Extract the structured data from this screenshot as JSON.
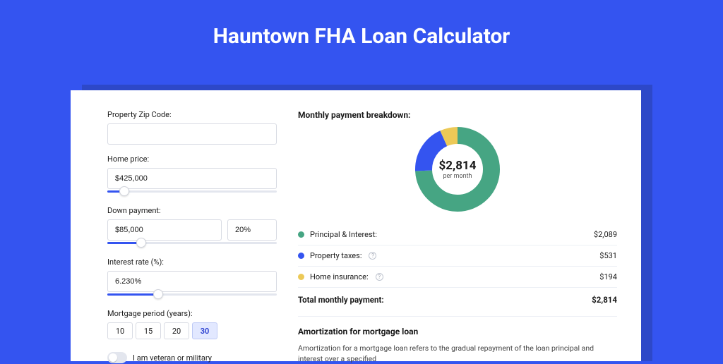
{
  "page": {
    "title": "Hauntown FHA Loan Calculator",
    "background_color": "#3454f0",
    "shadow_color": "#2d48c8",
    "card_color": "#ffffff"
  },
  "form": {
    "zip": {
      "label": "Property Zip Code:",
      "value": ""
    },
    "home_price": {
      "label": "Home price:",
      "value": "$425,000",
      "slider_pct": 10
    },
    "down_payment": {
      "label": "Down payment:",
      "amount": "$85,000",
      "percent": "20%",
      "slider_pct": 20
    },
    "interest_rate": {
      "label": "Interest rate (%):",
      "value": "6.230%",
      "slider_pct": 30
    },
    "mortgage_period": {
      "label": "Mortgage period (years):",
      "options": [
        "10",
        "15",
        "20",
        "30"
      ],
      "selected_index": 3
    },
    "veteran": {
      "label": "I am veteran or military",
      "checked": false
    }
  },
  "breakdown": {
    "title": "Monthly payment breakdown:",
    "center_amount": "$2,814",
    "center_sub": "per month",
    "donut": {
      "slices": [
        {
          "color": "#46a583",
          "fraction": 0.742
        },
        {
          "color": "#3454f0",
          "fraction": 0.189
        },
        {
          "color": "#ecc957",
          "fraction": 0.069
        }
      ],
      "radius": 48,
      "stroke_width": 24
    },
    "items": [
      {
        "label": "Principal & Interest:",
        "value": "$2,089",
        "color": "#46a583",
        "info": false
      },
      {
        "label": "Property taxes:",
        "value": "$531",
        "color": "#3454f0",
        "info": true
      },
      {
        "label": "Home insurance:",
        "value": "$194",
        "color": "#ecc957",
        "info": true
      }
    ],
    "total": {
      "label": "Total monthly payment:",
      "value": "$2,814"
    }
  },
  "amortization": {
    "title": "Amortization for mortgage loan",
    "text": "Amortization for a mortgage loan refers to the gradual repayment of the loan principal and interest over a specified"
  }
}
